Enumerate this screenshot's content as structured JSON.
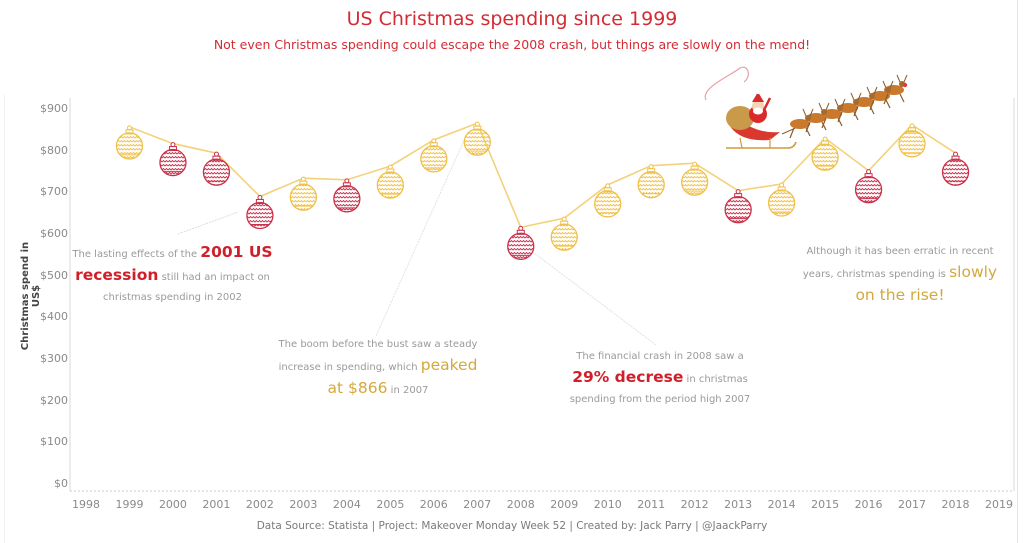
{
  "header": {
    "title": "US Christmas spending since 1999",
    "subtitle": "Not even Christmas spending could escape the 2008 crash, but things are slowly on the mend!"
  },
  "footer": {
    "credits": "Data Source: Statista | Project: Makeover Monday Week 52 | Created by: Jack Parry | @JaackParry"
  },
  "colors": {
    "accent_red": "#d11f2a",
    "ornament_red": "#c9304a",
    "ornament_gold": "#f0c04a",
    "string": "#f2d27a",
    "annotation_gold": "#d4a93c",
    "annotation_gray": "#9a9a9a"
  },
  "decoration": {
    "image": "santa-sleigh-reindeer"
  },
  "annotations": {
    "recession": {
      "pre": "The lasting effects of the ",
      "highlight1": "2001 US",
      "highlight2": "recession",
      "post1": " still had an impact on",
      "post2": "christmas spending in 2002"
    },
    "boom": {
      "line1": "The boom before the bust saw a steady",
      "pre2": "increase in spending, which ",
      "highlight1": "peaked",
      "highlight2": "at $866",
      "post": " in 2007"
    },
    "crash": {
      "line1": "The financial crash in 2008 saw a",
      "highlight": "29% decrese",
      "post": " in christmas",
      "line3": "spending from the period high 2007"
    },
    "rise": {
      "line1": "Although it has been erratic in recent",
      "pre2": "years, christmas spending is ",
      "highlight1": "slowly",
      "highlight2": "on the rise!"
    }
  },
  "chart_data": {
    "type": "line",
    "title": "US Christmas spending since 1999",
    "subtitle": "Not even Christmas spending could escape the 2008 crash, but things are slowly on the mend!",
    "xlabel": "",
    "ylabel": "Christmas spend in US$",
    "x": [
      1999,
      2000,
      2001,
      2002,
      2003,
      2004,
      2005,
      2006,
      2007,
      2008,
      2009,
      2010,
      2011,
      2012,
      2013,
      2014,
      2015,
      2016,
      2017,
      2018
    ],
    "series": [
      {
        "name": "Christmas spend",
        "values": [
          857,
          817,
          794,
          690,
          734,
          730,
          763,
          826,
          866,
          616,
          638,
          718,
          764,
          770,
          704,
          720,
          830,
          752,
          862,
          794
        ],
        "marker_colors": [
          "gold",
          "red",
          "red",
          "red",
          "gold",
          "red",
          "gold",
          "gold",
          "gold",
          "red",
          "gold",
          "gold",
          "gold",
          "gold",
          "red",
          "gold",
          "gold",
          "red",
          "gold",
          "red"
        ]
      }
    ],
    "x_ticks": [
      "1998",
      "1999",
      "2000",
      "2001",
      "2002",
      "2003",
      "2004",
      "2005",
      "2006",
      "2007",
      "2008",
      "2009",
      "2010",
      "2011",
      "2012",
      "2013",
      "2014",
      "2015",
      "2016",
      "2017",
      "2018",
      "2019"
    ],
    "y_ticks": [
      "$0",
      "$100",
      "$200",
      "$300",
      "$400",
      "$500",
      "$600",
      "$700",
      "$800",
      "$900"
    ],
    "xlim": [
      1998,
      2019
    ],
    "ylim": [
      0,
      900
    ],
    "grid": false,
    "marker": "christmas-ornament"
  }
}
